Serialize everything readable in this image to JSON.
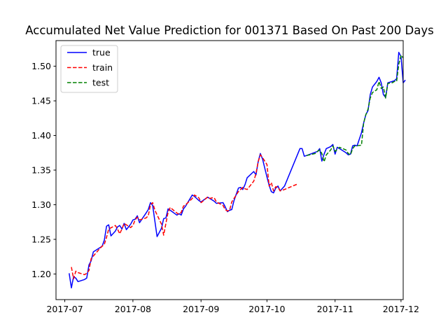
{
  "chart_data": {
    "type": "line",
    "title": "Accumulated Net Value Prediction for 001371 Based On Past 200 Days",
    "xlabel": "",
    "ylabel": "",
    "xlim": [
      "2017-06-27",
      "2017-12-02"
    ],
    "ylim": [
      1.163,
      1.537
    ],
    "x_ticks": [
      "2017-07-01",
      "2017-08-01",
      "2017-09-01",
      "2017-10-01",
      "2017-11-01",
      "2017-12-01"
    ],
    "x_tick_labels": [
      "2017-07",
      "2017-08",
      "2017-09",
      "2017-10",
      "2017-11",
      "2017-12"
    ],
    "y_ticks": [
      1.2,
      1.25,
      1.3,
      1.35,
      1.4,
      1.45,
      1.5
    ],
    "y_tick_labels": [
      "1.20",
      "1.25",
      "1.30",
      "1.35",
      "1.40",
      "1.45",
      "1.50"
    ],
    "grid": false,
    "legend_position": "top-left",
    "series": [
      {
        "name": "true",
        "color": "#0000ff",
        "dash": "solid",
        "points": [
          [
            "2017-07-03",
            1.201
          ],
          [
            "2017-07-04",
            1.18
          ],
          [
            "2017-07-05",
            1.196
          ],
          [
            "2017-07-06",
            1.194
          ],
          [
            "2017-07-07",
            1.189
          ],
          [
            "2017-07-10",
            1.192
          ],
          [
            "2017-07-11",
            1.194
          ],
          [
            "2017-07-12",
            1.213
          ],
          [
            "2017-07-13",
            1.219
          ],
          [
            "2017-07-14",
            1.232
          ],
          [
            "2017-07-17",
            1.238
          ],
          [
            "2017-07-18",
            1.24
          ],
          [
            "2017-07-19",
            1.249
          ],
          [
            "2017-07-20",
            1.269
          ],
          [
            "2017-07-21",
            1.271
          ],
          [
            "2017-07-22",
            1.255
          ],
          [
            "2017-07-24",
            1.262
          ],
          [
            "2017-07-25",
            1.268
          ],
          [
            "2017-07-26",
            1.27
          ],
          [
            "2017-07-27",
            1.265
          ],
          [
            "2017-07-28",
            1.273
          ],
          [
            "2017-07-29",
            1.264
          ],
          [
            "2017-07-31",
            1.272
          ],
          [
            "2017-08-01",
            1.278
          ],
          [
            "2017-08-02",
            1.279
          ],
          [
            "2017-08-03",
            1.284
          ],
          [
            "2017-08-04",
            1.274
          ],
          [
            "2017-08-07",
            1.288
          ],
          [
            "2017-08-08",
            1.293
          ],
          [
            "2017-08-09",
            1.303
          ],
          [
            "2017-08-10",
            1.299
          ],
          [
            "2017-08-11",
            1.276
          ],
          [
            "2017-08-12",
            1.254
          ],
          [
            "2017-08-14",
            1.266
          ],
          [
            "2017-08-15",
            1.28
          ],
          [
            "2017-08-16",
            1.281
          ],
          [
            "2017-08-17",
            1.294
          ],
          [
            "2017-08-18",
            1.292
          ],
          [
            "2017-08-21",
            1.285
          ],
          [
            "2017-08-22",
            1.287
          ],
          [
            "2017-08-23",
            1.285
          ],
          [
            "2017-08-24",
            1.294
          ],
          [
            "2017-08-25",
            1.298
          ],
          [
            "2017-08-28",
            1.314
          ],
          [
            "2017-08-29",
            1.312
          ],
          [
            "2017-08-31",
            1.306
          ],
          [
            "2017-09-01",
            1.304
          ],
          [
            "2017-09-04",
            1.311
          ],
          [
            "2017-09-05",
            1.309
          ],
          [
            "2017-09-06",
            1.307
          ],
          [
            "2017-09-07",
            1.305
          ],
          [
            "2017-09-08",
            1.302
          ],
          [
            "2017-09-11",
            1.303
          ],
          [
            "2017-09-12",
            1.297
          ],
          [
            "2017-09-13",
            1.29
          ],
          [
            "2017-09-14",
            1.292
          ],
          [
            "2017-09-15",
            1.293
          ],
          [
            "2017-09-16",
            1.306
          ],
          [
            "2017-09-18",
            1.324
          ],
          [
            "2017-09-19",
            1.325
          ],
          [
            "2017-09-20",
            1.322
          ],
          [
            "2017-09-21",
            1.329
          ],
          [
            "2017-09-22",
            1.339
          ],
          [
            "2017-09-25",
            1.348
          ],
          [
            "2017-09-26",
            1.343
          ],
          [
            "2017-09-27",
            1.362
          ],
          [
            "2017-09-28",
            1.374
          ],
          [
            "2017-09-29",
            1.366
          ],
          [
            "2017-09-30",
            1.353
          ],
          [
            "2017-10-01",
            1.34
          ],
          [
            "2017-10-02",
            1.328
          ],
          [
            "2017-10-03",
            1.319
          ],
          [
            "2017-10-04",
            1.317
          ],
          [
            "2017-10-05",
            1.324
          ],
          [
            "2017-10-06",
            1.327
          ],
          [
            "2017-10-07",
            1.32
          ],
          [
            "2017-10-09",
            1.327
          ],
          [
            "2017-10-16",
            1.381
          ],
          [
            "2017-10-17",
            1.381
          ],
          [
            "2017-10-18",
            1.37
          ],
          [
            "2017-10-19",
            1.371
          ],
          [
            "2017-10-24",
            1.377
          ],
          [
            "2017-10-25",
            1.381
          ],
          [
            "2017-10-26",
            1.363
          ],
          [
            "2017-10-27",
            1.373
          ],
          [
            "2017-10-28",
            1.381
          ],
          [
            "2017-10-30",
            1.384
          ],
          [
            "2017-10-31",
            1.387
          ],
          [
            "2017-11-01",
            1.373
          ],
          [
            "2017-11-02",
            1.383
          ],
          [
            "2017-11-03",
            1.381
          ],
          [
            "2017-11-06",
            1.375
          ],
          [
            "2017-11-07",
            1.372
          ],
          [
            "2017-11-08",
            1.373
          ],
          [
            "2017-11-09",
            1.385
          ],
          [
            "2017-11-10",
            1.386
          ],
          [
            "2017-11-11",
            1.385
          ],
          [
            "2017-11-13",
            1.404
          ],
          [
            "2017-11-14",
            1.418
          ],
          [
            "2017-11-15",
            1.43
          ],
          [
            "2017-11-16",
            1.436
          ],
          [
            "2017-11-17",
            1.459
          ],
          [
            "2017-11-18",
            1.47
          ],
          [
            "2017-11-20",
            1.478
          ],
          [
            "2017-11-21",
            1.484
          ],
          [
            "2017-11-22",
            1.476
          ],
          [
            "2017-11-23",
            1.459
          ],
          [
            "2017-11-24",
            1.455
          ],
          [
            "2017-11-25",
            1.476
          ],
          [
            "2017-11-27",
            1.478
          ],
          [
            "2017-11-28",
            1.479
          ],
          [
            "2017-11-29",
            1.482
          ],
          [
            "2017-11-30",
            1.52
          ],
          [
            "2017-12-01",
            1.514
          ],
          [
            "2017-12-02",
            1.476
          ],
          [
            "2017-12-03",
            1.48
          ]
        ]
      },
      {
        "name": "train",
        "color": "#ff0000",
        "dash": "dashed",
        "points": [
          [
            "2017-07-04",
            1.21
          ],
          [
            "2017-07-05",
            1.193
          ],
          [
            "2017-07-06",
            1.204
          ],
          [
            "2017-07-07",
            1.202
          ],
          [
            "2017-07-10",
            1.199
          ],
          [
            "2017-07-11",
            1.201
          ],
          [
            "2017-07-12",
            1.205
          ],
          [
            "2017-07-13",
            1.222
          ],
          [
            "2017-07-14",
            1.226
          ],
          [
            "2017-07-17",
            1.237
          ],
          [
            "2017-07-18",
            1.24
          ],
          [
            "2017-07-19",
            1.243
          ],
          [
            "2017-07-20",
            1.253
          ],
          [
            "2017-07-21",
            1.265
          ],
          [
            "2017-07-24",
            1.27
          ],
          [
            "2017-07-25",
            1.265
          ],
          [
            "2017-07-26",
            1.258
          ],
          [
            "2017-07-27",
            1.265
          ],
          [
            "2017-07-28",
            1.273
          ],
          [
            "2017-07-31",
            1.267
          ],
          [
            "2017-08-01",
            1.27
          ],
          [
            "2017-08-02",
            1.278
          ],
          [
            "2017-08-03",
            1.282
          ],
          [
            "2017-08-04",
            1.278
          ],
          [
            "2017-08-07",
            1.281
          ],
          [
            "2017-08-08",
            1.284
          ],
          [
            "2017-08-09",
            1.3
          ],
          [
            "2017-08-10",
            1.303
          ],
          [
            "2017-08-11",
            1.292
          ],
          [
            "2017-08-14",
            1.272
          ],
          [
            "2017-08-15",
            1.256
          ],
          [
            "2017-08-16",
            1.273
          ],
          [
            "2017-08-17",
            1.289
          ],
          [
            "2017-08-18",
            1.296
          ],
          [
            "2017-08-21",
            1.288
          ],
          [
            "2017-08-22",
            1.286
          ],
          [
            "2017-08-23",
            1.289
          ],
          [
            "2017-08-24",
            1.298
          ],
          [
            "2017-08-25",
            1.3
          ],
          [
            "2017-08-28",
            1.309
          ],
          [
            "2017-08-29",
            1.314
          ],
          [
            "2017-08-31",
            1.31
          ],
          [
            "2017-09-01",
            1.303
          ],
          [
            "2017-09-04",
            1.311
          ],
          [
            "2017-09-05",
            1.309
          ],
          [
            "2017-09-06",
            1.31
          ],
          [
            "2017-09-07",
            1.31
          ],
          [
            "2017-09-08",
            1.304
          ],
          [
            "2017-09-11",
            1.299
          ],
          [
            "2017-09-12",
            1.293
          ],
          [
            "2017-09-13",
            1.291
          ],
          [
            "2017-09-14",
            1.292
          ],
          [
            "2017-09-15",
            1.304
          ],
          [
            "2017-09-18",
            1.319
          ],
          [
            "2017-09-19",
            1.322
          ],
          [
            "2017-09-20",
            1.325
          ],
          [
            "2017-09-21",
            1.323
          ],
          [
            "2017-09-22",
            1.322
          ],
          [
            "2017-09-25",
            1.334
          ],
          [
            "2017-09-26",
            1.345
          ],
          [
            "2017-09-27",
            1.362
          ],
          [
            "2017-09-28",
            1.372
          ],
          [
            "2017-09-29",
            1.368
          ],
          [
            "2017-09-30",
            1.363
          ],
          [
            "2017-10-01",
            1.358
          ],
          [
            "2017-10-02",
            1.327
          ],
          [
            "2017-10-03",
            1.332
          ],
          [
            "2017-10-04",
            1.32
          ],
          [
            "2017-10-05",
            1.326
          ],
          [
            "2017-10-06",
            1.325
          ],
          [
            "2017-10-07",
            1.32
          ],
          [
            "2017-10-09",
            1.322
          ],
          [
            "2017-10-12",
            1.326
          ],
          [
            "2017-10-15",
            1.33
          ]
        ]
      },
      {
        "name": "test",
        "color": "#008000",
        "dash": "dashed",
        "points": [
          [
            "2017-10-19",
            1.371
          ],
          [
            "2017-10-23",
            1.374
          ],
          [
            "2017-10-24",
            1.377
          ],
          [
            "2017-10-25",
            1.379
          ],
          [
            "2017-10-26",
            1.374
          ],
          [
            "2017-10-27",
            1.362
          ],
          [
            "2017-10-28",
            1.372
          ],
          [
            "2017-10-30",
            1.379
          ],
          [
            "2017-10-31",
            1.385
          ],
          [
            "2017-11-01",
            1.377
          ],
          [
            "2017-11-02",
            1.38
          ],
          [
            "2017-11-03",
            1.383
          ],
          [
            "2017-11-06",
            1.379
          ],
          [
            "2017-11-07",
            1.374
          ],
          [
            "2017-11-08",
            1.372
          ],
          [
            "2017-11-09",
            1.381
          ],
          [
            "2017-11-10",
            1.385
          ],
          [
            "2017-11-13",
            1.386
          ],
          [
            "2017-11-14",
            1.418
          ],
          [
            "2017-11-15",
            1.43
          ],
          [
            "2017-11-16",
            1.438
          ],
          [
            "2017-11-17",
            1.454
          ],
          [
            "2017-11-18",
            1.462
          ],
          [
            "2017-11-20",
            1.466
          ],
          [
            "2017-11-21",
            1.478
          ],
          [
            "2017-11-22",
            1.468
          ],
          [
            "2017-11-23",
            1.47
          ],
          [
            "2017-11-24",
            1.454
          ],
          [
            "2017-11-25",
            1.475
          ],
          [
            "2017-11-27",
            1.476
          ],
          [
            "2017-11-28",
            1.478
          ],
          [
            "2017-11-29",
            1.478
          ],
          [
            "2017-11-30",
            1.503
          ],
          [
            "2017-12-01",
            1.516
          ],
          [
            "2017-12-02",
            1.512
          ]
        ]
      }
    ]
  }
}
